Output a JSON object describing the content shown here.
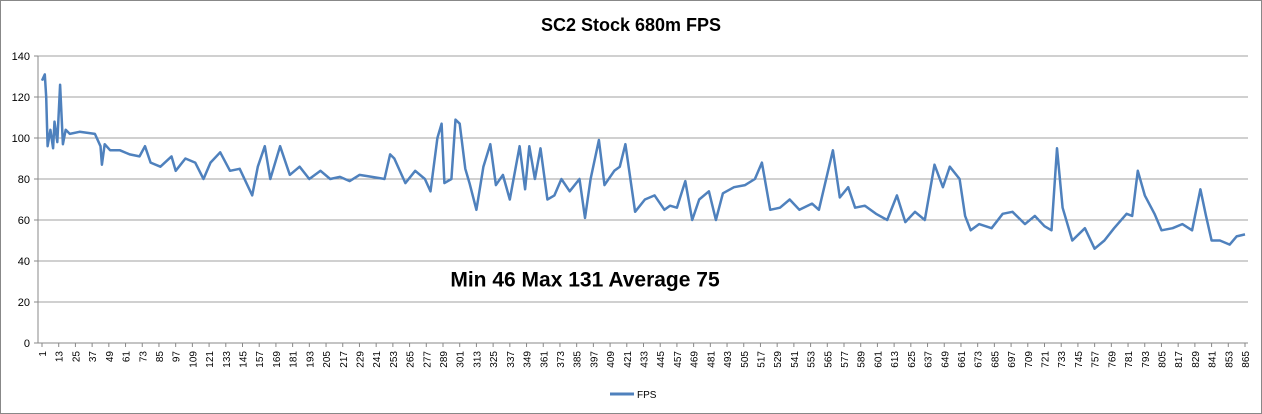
{
  "chart_data": {
    "type": "line",
    "title": "SC2 Stock 680m FPS",
    "annotation": "Min 46  Max 131  Average 75",
    "xlim": [
      1,
      865
    ],
    "xticks": [
      1,
      13,
      25,
      37,
      49,
      61,
      73,
      85,
      97,
      109,
      121,
      133,
      145,
      157,
      169,
      181,
      193,
      205,
      217,
      229,
      241,
      253,
      265,
      277,
      289,
      301,
      313,
      325,
      337,
      349,
      361,
      373,
      385,
      397,
      409,
      421,
      433,
      445,
      457,
      469,
      481,
      493,
      505,
      517,
      529,
      541,
      553,
      565,
      577,
      589,
      601,
      613,
      625,
      637,
      649,
      661,
      673,
      685,
      697,
      709,
      721,
      733,
      745,
      757,
      769,
      781,
      793,
      805,
      817,
      829,
      841,
      853,
      865
    ],
    "ylim": [
      0,
      140
    ],
    "yticks": [
      0,
      20,
      40,
      60,
      80,
      100,
      120,
      140
    ],
    "grid": true,
    "legend": "bottom",
    "x": [
      1,
      3,
      4,
      5,
      7,
      9,
      10,
      12,
      14,
      16,
      18,
      21,
      28,
      39,
      43,
      44,
      46,
      50,
      57,
      64,
      71,
      75,
      79,
      86,
      94,
      97,
      104,
      111,
      117,
      122,
      129,
      136,
      143,
      152,
      156,
      161,
      165,
      172,
      179,
      186,
      193,
      201,
      208,
      215,
      222,
      229,
      238,
      247,
      251,
      254,
      258,
      262,
      269,
      276,
      280,
      285,
      288,
      290,
      295,
      298,
      301,
      305,
      308,
      313,
      318,
      323,
      327,
      332,
      337,
      344,
      348,
      351,
      355,
      359,
      364,
      369,
      374,
      380,
      387,
      391,
      395,
      401,
      405,
      412,
      416,
      420,
      427,
      434,
      441,
      448,
      452,
      457,
      463,
      468,
      473,
      480,
      485,
      490,
      498,
      506,
      513,
      518,
      524,
      531,
      538,
      545,
      554,
      559,
      569,
      574,
      580,
      585,
      592,
      600,
      608,
      615,
      621,
      628,
      635,
      642,
      648,
      653,
      660,
      664,
      668,
      674,
      683,
      691,
      698,
      707,
      714,
      721,
      726,
      730,
      734,
      741,
      750,
      757,
      764,
      771,
      780,
      784,
      788,
      793,
      800,
      805,
      813,
      820,
      827,
      833,
      837,
      841,
      847,
      854,
      859,
      865
    ],
    "series": [
      {
        "name": "FPS",
        "color": "#4f81bd",
        "values": [
          128,
          131,
          120,
          96,
          104,
          95,
          108,
          98,
          126,
          97,
          104,
          102,
          103,
          102,
          96,
          87,
          97,
          94,
          94,
          92,
          91,
          96,
          88,
          86,
          91,
          84,
          90,
          88,
          80,
          88,
          93,
          84,
          85,
          72,
          86,
          96,
          80,
          96,
          82,
          86,
          80,
          84,
          80,
          81,
          79,
          82,
          81,
          80,
          92,
          90,
          84,
          78,
          84,
          80,
          74,
          100,
          107,
          78,
          80,
          109,
          107,
          85,
          78,
          65,
          86,
          97,
          77,
          82,
          70,
          96,
          75,
          96,
          80,
          95,
          70,
          72,
          80,
          74,
          80,
          61,
          80,
          99,
          77,
          84,
          86,
          97,
          64,
          70,
          72,
          65,
          67,
          66,
          79,
          60,
          70,
          74,
          60,
          73,
          76,
          77,
          80,
          88,
          65,
          66,
          70,
          65,
          68,
          65,
          94,
          71,
          76,
          66,
          67,
          63,
          60,
          72,
          59,
          64,
          60,
          87,
          76,
          86,
          80,
          62,
          55,
          58,
          56,
          63,
          64,
          58,
          62,
          57,
          55,
          95,
          66,
          50,
          56,
          46,
          50,
          56,
          63,
          62,
          84,
          72,
          63,
          55,
          56,
          58,
          55,
          75,
          62,
          50,
          50,
          48,
          52,
          53
        ]
      }
    ]
  }
}
